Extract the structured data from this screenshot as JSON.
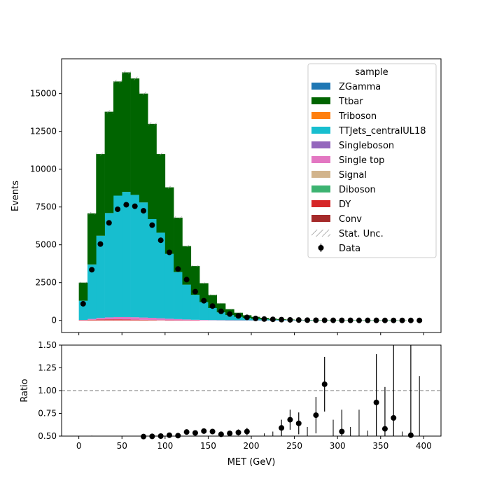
{
  "chart_data": [
    {
      "type": "bar",
      "stacked": true,
      "x_bin_centers": [
        5,
        15,
        25,
        35,
        45,
        55,
        65,
        75,
        85,
        95,
        105,
        115,
        125,
        135,
        145,
        155,
        165,
        175,
        185,
        195,
        205,
        215,
        225,
        235,
        245,
        255,
        265,
        275,
        285,
        295,
        305,
        315,
        325,
        335,
        345,
        355,
        365,
        375,
        385,
        395
      ],
      "bin_width": 10,
      "ylabel": "Events",
      "ylim": [
        -800,
        17300
      ],
      "xlim": [
        -20,
        420
      ],
      "yticks": [
        "0",
        "2500",
        "5000",
        "7500",
        "10000",
        "12500",
        "15000"
      ],
      "ytick_values": [
        0,
        2500,
        5000,
        7500,
        10000,
        12500,
        15000
      ],
      "xticks_values": [
        0,
        50,
        100,
        150,
        200,
        250,
        300,
        350,
        400
      ],
      "series": [
        {
          "name": "DY",
          "color": "#d62728",
          "values": [
            10,
            40,
            60,
            70,
            70,
            60,
            50,
            40,
            30,
            20,
            10,
            5,
            3,
            2,
            0,
            0,
            0,
            0,
            0,
            0,
            0,
            0,
            0,
            0,
            0,
            0,
            0,
            0,
            0,
            0,
            0,
            0,
            0,
            0,
            0,
            0,
            0,
            0,
            0,
            0
          ]
        },
        {
          "name": "Single top",
          "color": "#e377c2",
          "values": [
            20,
            60,
            100,
            130,
            150,
            160,
            160,
            150,
            140,
            120,
            100,
            80,
            60,
            40,
            30,
            20,
            15,
            10,
            8,
            5,
            4,
            3,
            2,
            2,
            1,
            1,
            1,
            0,
            0,
            0,
            0,
            0,
            0,
            0,
            0,
            0,
            0,
            0,
            0,
            0
          ]
        },
        {
          "name": "TTJets_centralUL18",
          "color": "#17becf",
          "values": [
            1270,
            3600,
            5440,
            6900,
            8030,
            8280,
            8090,
            7610,
            6530,
            5660,
            4290,
            3110,
            2300,
            1650,
            1180,
            800,
            520,
            340,
            230,
            155,
            100,
            70,
            50,
            35,
            25,
            18,
            12,
            9,
            6,
            4,
            3,
            2,
            2,
            1,
            1,
            1,
            1,
            0,
            0,
            0
          ]
        },
        {
          "name": "Ttbar",
          "color": "#006400",
          "values": [
            1200,
            3380,
            5400,
            6700,
            7550,
            7900,
            7700,
            7200,
            6300,
            5200,
            4400,
            3600,
            2550,
            1900,
            1250,
            860,
            590,
            390,
            270,
            180,
            130,
            90,
            60,
            40,
            30,
            20,
            15,
            10,
            8,
            6,
            4,
            3,
            2,
            2,
            1,
            1,
            1,
            1,
            0,
            0
          ]
        }
      ],
      "data_series": {
        "name": "Data",
        "values": [
          1100,
          3350,
          5050,
          6450,
          7350,
          7650,
          7550,
          7250,
          6300,
          5300,
          4500,
          3400,
          2700,
          1900,
          1300,
          950,
          600,
          420,
          300,
          200,
          130,
          90,
          70,
          50,
          35,
          25,
          18,
          12,
          9,
          7,
          5,
          4,
          3,
          2,
          2,
          1,
          1,
          1,
          1,
          0
        ]
      },
      "legend": {
        "title": "sample",
        "placement": "top-right",
        "entries": [
          {
            "label": "ZGamma",
            "color": "#1f77b4",
            "kind": "patch"
          },
          {
            "label": "Ttbar",
            "color": "#006400",
            "kind": "patch"
          },
          {
            "label": "Triboson",
            "color": "#ff7f0e",
            "kind": "patch"
          },
          {
            "label": "TTJets_centralUL18",
            "color": "#17becf",
            "kind": "patch"
          },
          {
            "label": "Singleboson",
            "color": "#9467bd",
            "kind": "patch"
          },
          {
            "label": "Single top",
            "color": "#e377c2",
            "kind": "patch"
          },
          {
            "label": "Signal",
            "color": "#d2b48c",
            "kind": "patch"
          },
          {
            "label": "Diboson",
            "color": "#3cb371",
            "kind": "patch"
          },
          {
            "label": "DY",
            "color": "#d62728",
            "kind": "patch"
          },
          {
            "label": "Conv",
            "color": "#a52a2a",
            "kind": "patch"
          },
          {
            "label": "Stat. Unc.",
            "color": "#999999",
            "kind": "hatch"
          },
          {
            "label": "Data",
            "color": "#000000",
            "kind": "marker"
          }
        ]
      }
    },
    {
      "type": "scatter",
      "xlabel": "MET (GeV)",
      "ylabel": "Ratio",
      "ylim": [
        0.5,
        1.5
      ],
      "xlim": [
        -20,
        420
      ],
      "yticks": [
        "0.50",
        "0.75",
        "1.00",
        "1.25",
        "1.50"
      ],
      "ytick_values": [
        0.5,
        0.75,
        1.0,
        1.25,
        1.5
      ],
      "xticks": [
        "0",
        "50",
        "100",
        "150",
        "200",
        "250",
        "300",
        "350",
        "400"
      ],
      "xtick_values": [
        0,
        50,
        100,
        150,
        200,
        250,
        300,
        350,
        400
      ],
      "reference_line": 1.0,
      "points": [
        {
          "x": 75,
          "y": 0.495,
          "err": 0.005
        },
        {
          "x": 85,
          "y": 0.497,
          "err": 0.006
        },
        {
          "x": 95,
          "y": 0.5,
          "err": 0.006
        },
        {
          "x": 105,
          "y": 0.51,
          "err": 0.008
        },
        {
          "x": 115,
          "y": 0.505,
          "err": 0.009
        },
        {
          "x": 125,
          "y": 0.545,
          "err": 0.011
        },
        {
          "x": 135,
          "y": 0.535,
          "err": 0.013
        },
        {
          "x": 145,
          "y": 0.555,
          "err": 0.016
        },
        {
          "x": 155,
          "y": 0.55,
          "err": 0.019
        },
        {
          "x": 165,
          "y": 0.52,
          "err": 0.023
        },
        {
          "x": 175,
          "y": 0.53,
          "err": 0.028
        },
        {
          "x": 185,
          "y": 0.54,
          "err": 0.033
        },
        {
          "x": 195,
          "y": 0.55,
          "err": 0.04
        },
        {
          "x": 235,
          "y": 0.59,
          "err": 0.09
        },
        {
          "x": 245,
          "y": 0.68,
          "err": 0.11
        },
        {
          "x": 255,
          "y": 0.64,
          "err": 0.12
        },
        {
          "x": 275,
          "y": 0.73,
          "err": 0.2
        },
        {
          "x": 285,
          "y": 1.07,
          "err": 0.3
        },
        {
          "x": 305,
          "y": 0.55,
          "err": 0.24
        },
        {
          "x": 345,
          "y": 0.87,
          "err": 0.53
        },
        {
          "x": 355,
          "y": 0.58,
          "err": 0.46
        },
        {
          "x": 365,
          "y": 0.7,
          "err": 0.8
        },
        {
          "x": 385,
          "y": 0.51,
          "err": 1.0
        }
      ],
      "error_only": [
        {
          "x": 15,
          "ylo": 0.49,
          "yhi": 0.505
        },
        {
          "x": 215,
          "ylo": 0.49,
          "yhi": 0.53
        },
        {
          "x": 225,
          "ylo": 0.49,
          "yhi": 0.55
        },
        {
          "x": 265,
          "ylo": 0.49,
          "yhi": 0.6
        },
        {
          "x": 295,
          "ylo": 0.49,
          "yhi": 0.68
        },
        {
          "x": 315,
          "ylo": 0.49,
          "yhi": 0.6
        },
        {
          "x": 325,
          "ylo": 0.49,
          "yhi": 0.79
        },
        {
          "x": 335,
          "ylo": 0.49,
          "yhi": 0.56
        },
        {
          "x": 375,
          "ylo": 0.49,
          "yhi": 0.55
        },
        {
          "x": 395,
          "ylo": 0.49,
          "yhi": 1.16
        }
      ]
    }
  ]
}
